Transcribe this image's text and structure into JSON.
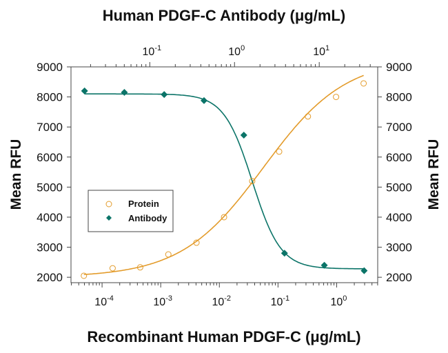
{
  "chart_data": {
    "type": "scatter",
    "title_top_axis": "Human PDGF-C  Antibody (μg/mL)",
    "xlabel_bottom": "Recombinant Human PDGF-C (μg/mL)",
    "ylabel_left": "Mean RFU",
    "ylabel_right": "Mean RFU",
    "ylim": [
      1820,
      9000
    ],
    "y_ticks": [
      2000,
      3000,
      4000,
      5000,
      6000,
      7000,
      8000,
      9000
    ],
    "bottom_xlim_log10": [
      -4.53,
      0.7
    ],
    "bottom_ticks": [
      {
        "base": "10",
        "exp": "-4"
      },
      {
        "base": "10",
        "exp": "-3"
      },
      {
        "base": "10",
        "exp": "-2"
      },
      {
        "base": "10",
        "exp": "-1"
      },
      {
        "base": "10",
        "exp": "0"
      }
    ],
    "top_xlim_log10": [
      -1.93,
      1.69
    ],
    "top_ticks": [
      {
        "base": "10",
        "exp": "-1"
      },
      {
        "base": "10",
        "exp": "0"
      },
      {
        "base": "10",
        "exp": "1"
      }
    ],
    "legend": {
      "placement": "center-left",
      "entries": [
        "Protein",
        "Antibody"
      ]
    },
    "series": [
      {
        "name": "Protein",
        "axis": "bottom",
        "marker": "open-circle",
        "color": "#e39b2a",
        "x_log10": [
          -4.31,
          -3.82,
          -3.35,
          -2.87,
          -2.39,
          -1.92,
          -1.44,
          -0.98,
          -0.49,
          -0.01,
          0.46
        ],
        "y": [
          2050,
          2300,
          2330,
          2760,
          3150,
          4000,
          5200,
          6180,
          7350,
          8000,
          8450
        ],
        "fit": {
          "bottom": 2000,
          "top": 9300,
          "log_ec50": -1.25,
          "hill": 0.62
        }
      },
      {
        "name": "Antibody",
        "axis": "top",
        "marker": "filled-diamond",
        "color": "#0b7468",
        "x_log10": [
          -1.77,
          -1.3,
          -0.83,
          -0.36,
          0.11,
          0.59,
          1.06,
          1.53
        ],
        "y": [
          8200,
          8150,
          8080,
          7880,
          6730,
          2800,
          2400,
          2220
        ],
        "fit": {
          "bottom": 2280,
          "top": 8100,
          "log_ec50": 0.21,
          "hill": -2.6
        }
      }
    ]
  }
}
